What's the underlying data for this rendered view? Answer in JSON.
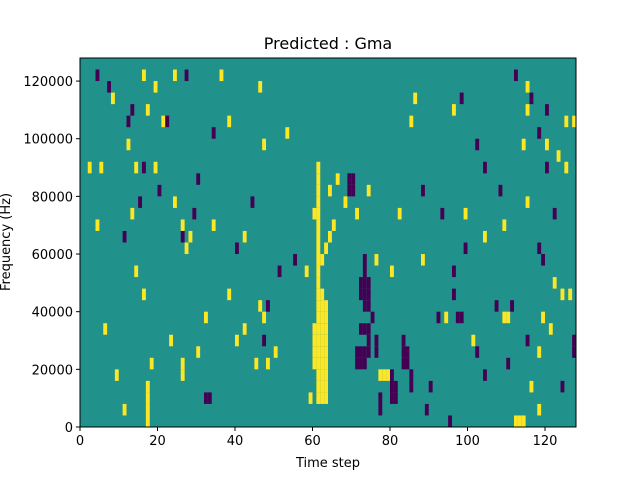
{
  "chart_data": {
    "type": "heatmap",
    "title": "Predicted : Gma",
    "xlabel": "Time step",
    "ylabel": "Frequency (Hz)",
    "xlim": [
      0,
      128
    ],
    "ylim": [
      0,
      128000
    ],
    "x_ticks": [
      0,
      20,
      40,
      60,
      80,
      100,
      120
    ],
    "x_tick_labels": [
      "0",
      "20",
      "40",
      "60",
      "80",
      "100",
      "120"
    ],
    "y_ticks": [
      0,
      20000,
      40000,
      60000,
      80000,
      100000,
      120000
    ],
    "y_tick_labels": [
      "0",
      "20000",
      "40000",
      "60000",
      "80000",
      "100000",
      "120000"
    ],
    "grid": false,
    "legend": "none",
    "colormap": "viridis",
    "value_levels": [
      -1,
      0,
      1
    ],
    "colors": {
      "-1": "#440154",
      "0": "#21918c",
      "1": "#fde725"
    },
    "background_value": 0,
    "freq_bin_hz": 4000,
    "cells_positive": [
      [
        16,
        44000,
        120000
      ],
      [
        24,
        120000
      ],
      [
        8,
        112000
      ],
      [
        36,
        120000
      ],
      [
        38,
        104000
      ],
      [
        46,
        116000
      ],
      [
        47,
        96000
      ],
      [
        5,
        88000
      ],
      [
        13,
        72000
      ],
      [
        26,
        68000
      ],
      [
        34,
        68000
      ],
      [
        42,
        64000
      ],
      [
        60,
        72000
      ],
      [
        64,
        80000
      ],
      [
        66,
        84000
      ],
      [
        68,
        76000
      ],
      [
        71,
        72000
      ],
      [
        74,
        80000
      ],
      [
        53,
        100000
      ],
      [
        46,
        40000
      ],
      [
        58,
        52000
      ],
      [
        62,
        56000
      ],
      [
        63,
        60000
      ],
      [
        64,
        64000
      ],
      [
        65,
        68000
      ],
      [
        61,
        8000,
        12000,
        16000,
        20000,
        24000,
        28000,
        32000,
        36000,
        40000,
        44000,
        48000,
        52000,
        56000,
        60000,
        64000,
        68000,
        72000,
        76000,
        80000,
        84000,
        88000
      ],
      [
        62,
        8000,
        12000,
        16000,
        20000,
        24000,
        28000,
        32000,
        36000,
        40000,
        44000
      ],
      [
        63,
        8000,
        12000,
        16000,
        20000,
        24000,
        28000,
        32000,
        36000,
        40000
      ],
      [
        60,
        20000,
        24000,
        28000,
        32000
      ],
      [
        59,
        8000
      ],
      [
        77,
        16000
      ],
      [
        78,
        16000
      ],
      [
        79,
        16000
      ],
      [
        80,
        52000
      ],
      [
        82,
        72000
      ],
      [
        76,
        56000
      ],
      [
        94,
        36000
      ],
      [
        101,
        28000
      ],
      [
        118,
        24000
      ],
      [
        121,
        32000
      ],
      [
        2,
        88000
      ],
      [
        4,
        68000
      ],
      [
        6,
        32000
      ],
      [
        9,
        16000
      ],
      [
        11,
        4000
      ],
      [
        14,
        52000
      ],
      [
        17,
        0,
        4000,
        8000,
        12000
      ],
      [
        18,
        20000
      ],
      [
        19,
        88000
      ],
      [
        23,
        28000
      ],
      [
        26,
        16000,
        20000
      ],
      [
        28,
        64000
      ],
      [
        30,
        24000
      ],
      [
        32,
        36000
      ],
      [
        38,
        44000
      ],
      [
        40,
        28000
      ],
      [
        42,
        32000
      ],
      [
        45,
        20000
      ],
      [
        47,
        36000
      ],
      [
        48,
        20000
      ],
      [
        50,
        24000
      ],
      [
        12,
        96000
      ],
      [
        14,
        88000
      ],
      [
        17,
        108000
      ],
      [
        19,
        116000
      ],
      [
        21,
        104000
      ],
      [
        24,
        76000
      ],
      [
        27,
        60000
      ],
      [
        112,
        0
      ],
      [
        113,
        0
      ],
      [
        114,
        0
      ],
      [
        109,
        36000
      ],
      [
        110,
        36000
      ],
      [
        116,
        12000
      ],
      [
        118,
        4000
      ],
      [
        119,
        36000
      ],
      [
        122,
        48000
      ],
      [
        124,
        44000
      ],
      [
        126,
        44000
      ],
      [
        125,
        104000
      ],
      [
        127,
        104000
      ],
      [
        125,
        88000
      ],
      [
        123,
        92000
      ],
      [
        85,
        104000
      ],
      [
        86,
        112000
      ],
      [
        88,
        56000
      ],
      [
        96,
        108000
      ],
      [
        99,
        72000
      ],
      [
        104,
        64000
      ],
      [
        109,
        68000
      ],
      [
        115,
        116000
      ],
      [
        115,
        108000
      ],
      [
        114,
        96000
      ],
      [
        120,
        96000
      ],
      [
        115,
        76000
      ]
    ],
    "cells_negative": [
      [
        4,
        120000
      ],
      [
        7,
        116000
      ],
      [
        12,
        104000
      ],
      [
        13,
        108000
      ],
      [
        16,
        88000
      ],
      [
        22,
        104000
      ],
      [
        27,
        120000
      ],
      [
        30,
        84000
      ],
      [
        34,
        100000
      ],
      [
        40,
        60000
      ],
      [
        44,
        76000
      ],
      [
        47,
        28000
      ],
      [
        48,
        40000
      ],
      [
        51,
        52000
      ],
      [
        55,
        56000
      ],
      [
        69,
        80000,
        84000
      ],
      [
        70,
        80000,
        84000
      ],
      [
        72,
        44000,
        48000
      ],
      [
        73,
        40000,
        44000,
        48000,
        52000,
        56000
      ],
      [
        74,
        40000,
        44000,
        48000
      ],
      [
        72,
        32000
      ],
      [
        73,
        32000
      ],
      [
        74,
        24000,
        28000,
        32000
      ],
      [
        75,
        36000
      ],
      [
        71,
        20000,
        24000
      ],
      [
        72,
        20000,
        24000
      ],
      [
        73,
        20000,
        24000
      ],
      [
        76,
        24000,
        28000
      ],
      [
        77,
        4000,
        8000
      ],
      [
        80,
        8000,
        12000,
        16000
      ],
      [
        81,
        8000,
        12000
      ],
      [
        83,
        20000,
        24000,
        28000
      ],
      [
        84,
        20000,
        24000
      ],
      [
        85,
        12000,
        16000
      ],
      [
        89,
        4000
      ],
      [
        90,
        12000
      ],
      [
        92,
        36000
      ],
      [
        95,
        0
      ],
      [
        96,
        44000,
        52000
      ],
      [
        97,
        36000
      ],
      [
        98,
        36000
      ],
      [
        99,
        60000
      ],
      [
        102,
        24000
      ],
      [
        104,
        16000
      ],
      [
        107,
        40000
      ],
      [
        32,
        8000
      ],
      [
        33,
        8000
      ],
      [
        26,
        64000
      ],
      [
        29,
        72000
      ],
      [
        20,
        80000
      ],
      [
        15,
        76000
      ],
      [
        11,
        64000
      ],
      [
        108,
        80000
      ],
      [
        110,
        20000
      ],
      [
        111,
        40000
      ],
      [
        115,
        28000
      ],
      [
        118,
        60000
      ],
      [
        119,
        56000
      ],
      [
        127,
        24000,
        28000
      ],
      [
        124,
        12000
      ],
      [
        122,
        72000
      ],
      [
        120,
        88000
      ],
      [
        118,
        100000
      ],
      [
        116,
        112000
      ],
      [
        120,
        108000
      ],
      [
        112,
        120000
      ],
      [
        104,
        88000
      ],
      [
        102,
        96000
      ],
      [
        98,
        112000
      ],
      [
        93,
        72000
      ],
      [
        88,
        80000
      ]
    ]
  }
}
